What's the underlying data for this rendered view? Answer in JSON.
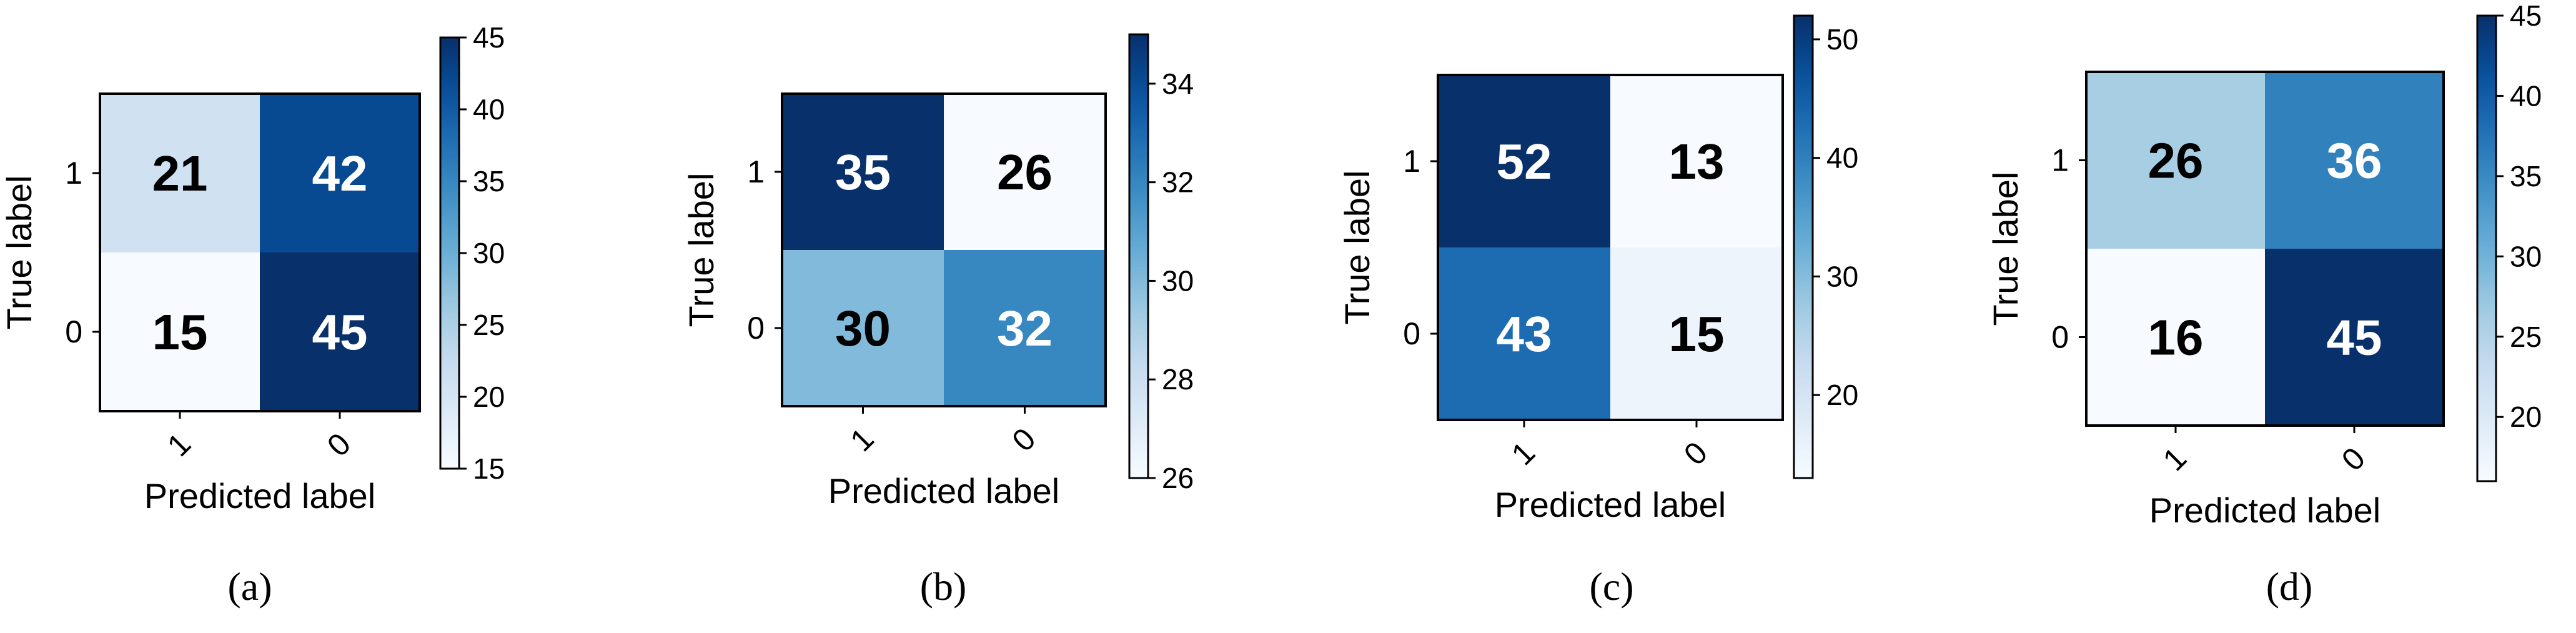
{
  "chart_data": [
    {
      "type": "heatmap",
      "caption": "(a)",
      "xlabel": "Predicted label",
      "ylabel": "True label",
      "x_categories": [
        "1",
        "0"
      ],
      "y_categories": [
        "1",
        "0"
      ],
      "matrix": [
        [
          21,
          42
        ],
        [
          15,
          45
        ]
      ],
      "colorbar": {
        "min": 15,
        "max": 45,
        "ticks": [
          15,
          20,
          25,
          30,
          35,
          40,
          45
        ]
      },
      "colormap": "Blues"
    },
    {
      "type": "heatmap",
      "caption": "(b)",
      "xlabel": "Predicted label",
      "ylabel": "True label",
      "x_categories": [
        "1",
        "0"
      ],
      "y_categories": [
        "1",
        "0"
      ],
      "matrix": [
        [
          35,
          26
        ],
        [
          30,
          32
        ]
      ],
      "colorbar": {
        "min": 26,
        "max": 35,
        "ticks": [
          26,
          28,
          30,
          32,
          34
        ]
      },
      "colormap": "Blues"
    },
    {
      "type": "heatmap",
      "caption": "(c)",
      "xlabel": "Predicted label",
      "ylabel": "True label",
      "x_categories": [
        "1",
        "0"
      ],
      "y_categories": [
        "1",
        "0"
      ],
      "matrix": [
        [
          52,
          13
        ],
        [
          43,
          15
        ]
      ],
      "colorbar": {
        "min": 13,
        "max": 52,
        "ticks": [
          20,
          30,
          40,
          50
        ]
      },
      "colormap": "Blues"
    },
    {
      "type": "heatmap",
      "caption": "(d)",
      "xlabel": "Predicted label",
      "ylabel": "True label",
      "x_categories": [
        "1",
        "0"
      ],
      "y_categories": [
        "1",
        "0"
      ],
      "matrix": [
        [
          26,
          36
        ],
        [
          16,
          45
        ]
      ],
      "colorbar": {
        "min": 16,
        "max": 45,
        "ticks": [
          20,
          25,
          30,
          35,
          40,
          45
        ]
      },
      "colormap": "Blues"
    }
  ]
}
